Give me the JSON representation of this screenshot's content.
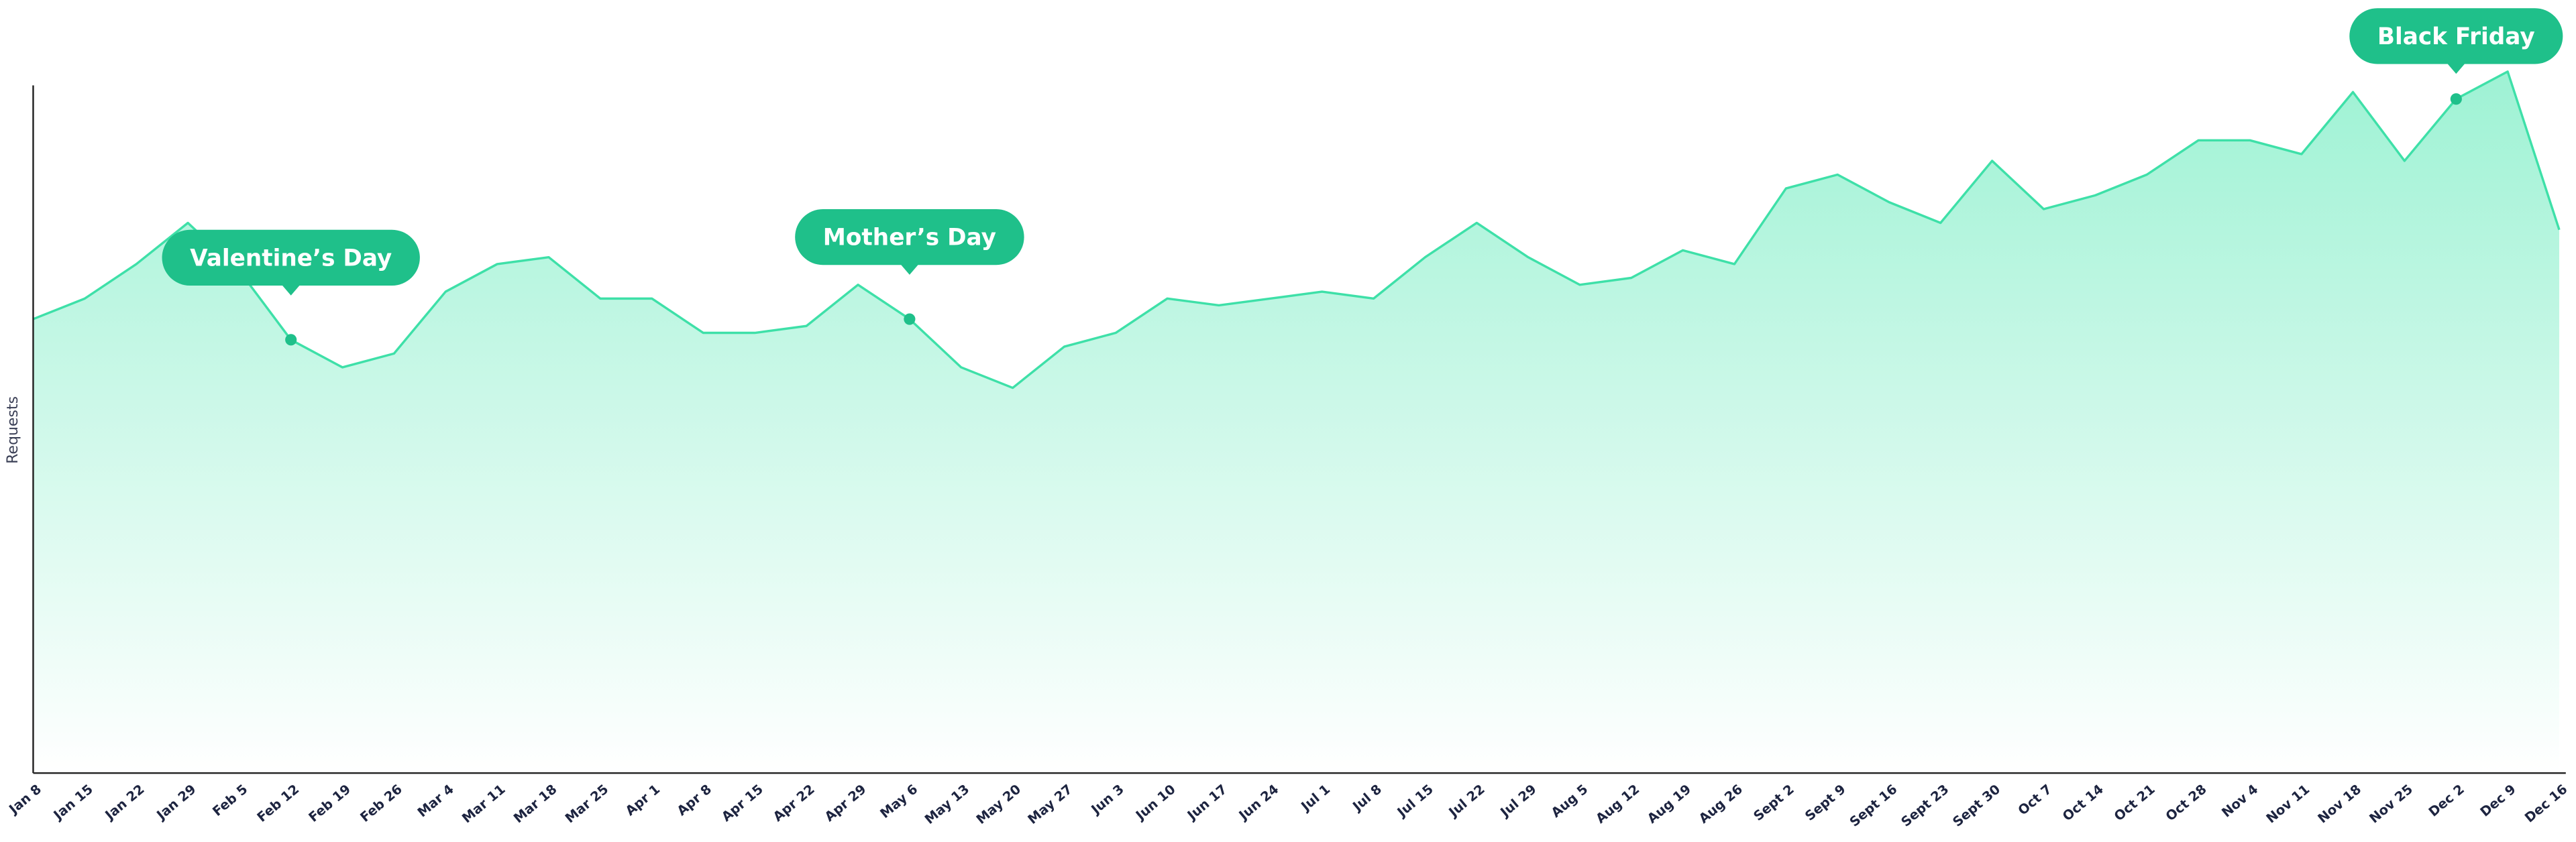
{
  "chart_data": {
    "type": "area",
    "ylabel": "Requests",
    "categories": [
      "Jan 8",
      "Jan 15",
      "Jan 22",
      "Jan 29",
      "Feb 5",
      "Feb 12",
      "Feb 19",
      "Feb 26",
      "Mar 4",
      "Mar 11",
      "Mar 18",
      "Mar 25",
      "Apr 1",
      "Apr 8",
      "Apr 15",
      "Apr 22",
      "Apr 29",
      "May 6",
      "May 13",
      "May 20",
      "May 27",
      "Jun 3",
      "Jun 10",
      "Jun 17",
      "Jun 24",
      "Jul 1",
      "Jul 8",
      "Jul 15",
      "Jul 22",
      "Jul 29",
      "Aug 5",
      "Aug 12",
      "Aug 19",
      "Aug 26",
      "Sept 2",
      "Sept 9",
      "Sept 16",
      "Sept 23",
      "Sept 30",
      "Oct 7",
      "Oct 14",
      "Oct 21",
      "Oct 28",
      "Nov 4",
      "Nov 11",
      "Nov 18",
      "Nov 25",
      "Dec 2",
      "Dec 9",
      "Dec 16"
    ],
    "values": [
      66,
      69,
      74,
      80,
      73,
      63,
      59,
      61,
      70,
      74,
      75,
      69,
      69,
      64,
      64,
      65,
      71,
      66,
      59,
      56,
      62,
      64,
      69,
      68,
      69,
      70,
      69,
      75,
      80,
      75,
      71,
      72,
      76,
      74,
      85,
      87,
      83,
      80,
      89,
      82,
      84,
      87,
      92,
      92,
      90,
      99,
      89,
      98,
      102,
      79
    ],
    "color": "#3ee0a8",
    "ylim": [
      0,
      105
    ],
    "annotations": [
      {
        "text": "Valentine’s Day",
        "category": "Feb 12"
      },
      {
        "text": "Mother’s Day",
        "category": "May 6"
      },
      {
        "text": "Black Friday",
        "category": "Dec 2"
      }
    ],
    "annotation_color": "#1fc08a"
  }
}
